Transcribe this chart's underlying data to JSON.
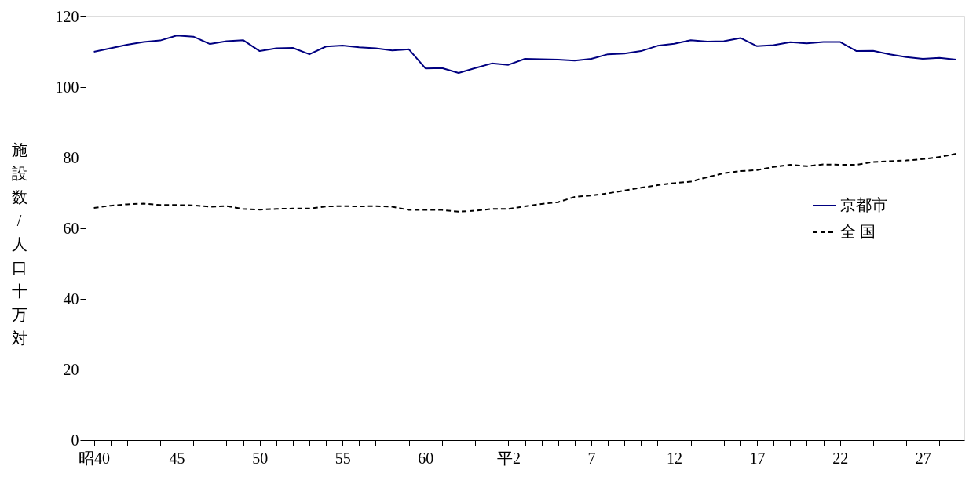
{
  "chart_data": {
    "type": "line",
    "ylabel": "施設数/人口十万対",
    "categories": [
      "昭40",
      null,
      null,
      null,
      null,
      "45",
      null,
      null,
      null,
      null,
      "50",
      null,
      null,
      null,
      null,
      "55",
      null,
      null,
      null,
      null,
      "60",
      null,
      null,
      null,
      null,
      "平2",
      null,
      null,
      null,
      null,
      "7",
      null,
      null,
      null,
      null,
      "12",
      null,
      null,
      null,
      null,
      "17",
      null,
      null,
      null,
      null,
      "22",
      null,
      null,
      null,
      null,
      "27",
      null,
      null
    ],
    "ylim": [
      0,
      120
    ],
    "yticks": [
      0,
      20,
      40,
      60,
      80,
      100,
      120
    ],
    "grid": false,
    "legend": "right",
    "marker": "none",
    "series": [
      {
        "name": "京都市",
        "color": "#000080",
        "line_style": "solid",
        "values": [
          110,
          111,
          112,
          112.8,
          113.2,
          114.6,
          114.3,
          112.2,
          113,
          113.3,
          110.2,
          111,
          111.1,
          109.3,
          111.5,
          111.8,
          111.3,
          111,
          110.4,
          110.7,
          105.3,
          105.4,
          104,
          105.4,
          106.7,
          106.3,
          108,
          107.9,
          107.8,
          107.5,
          108,
          109.3,
          109.5,
          110.2,
          111.7,
          112.3,
          113.3,
          112.9,
          113,
          113.9,
          111.6,
          111.9,
          112.7,
          112.4,
          112.8,
          112.8,
          110.2,
          110.3,
          109.3,
          108.5,
          108,
          108.3,
          107.8
        ]
      },
      {
        "name": "全 国",
        "color": "#000000",
        "line_style": "dashed",
        "values": [
          65.8,
          66.4,
          66.8,
          67,
          66.6,
          66.6,
          66.5,
          66.1,
          66.3,
          65.5,
          65.3,
          65.5,
          65.6,
          65.6,
          66.2,
          66.3,
          66.2,
          66.3,
          66.1,
          65.2,
          65.2,
          65.2,
          64.7,
          65,
          65.5,
          65.5,
          66.2,
          66.9,
          67.4,
          68.9,
          69.3,
          69.9,
          70.7,
          71.5,
          72.2,
          72.8,
          73.2,
          74.5,
          75.6,
          76.2,
          76.5,
          77.4,
          78,
          77.6,
          78.1,
          78,
          78,
          78.8,
          79,
          79.2,
          79.6,
          80.2,
          81.1
        ]
      }
    ]
  }
}
